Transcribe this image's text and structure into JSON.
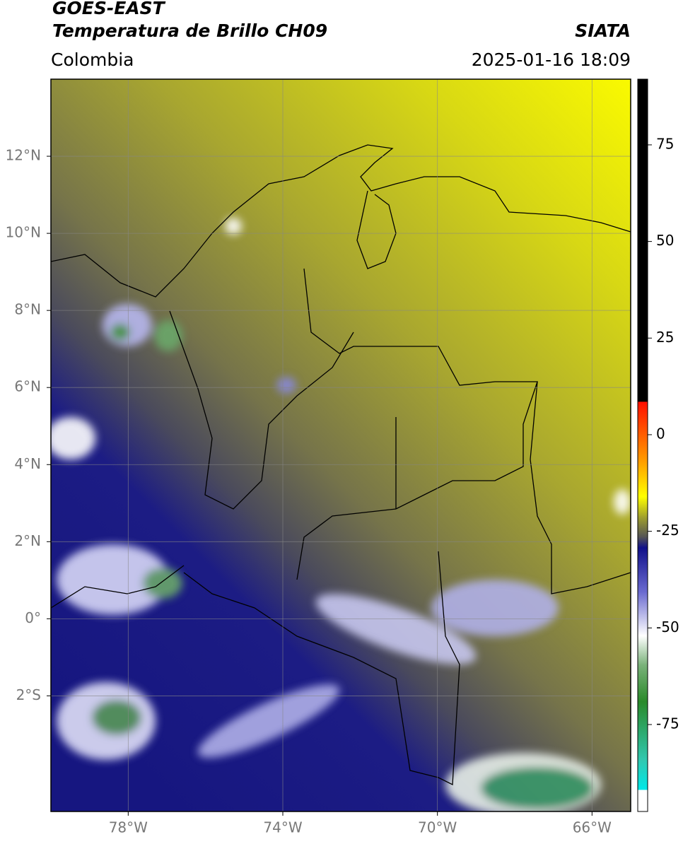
{
  "header": {
    "title_line1": "GOES-EAST",
    "title_line2": "Temperatura de Brillo CH09",
    "source": "SIATA",
    "region": "Colombia",
    "datetime": "2025-01-16 18:09"
  },
  "map": {
    "xlim": [
      -80,
      -65
    ],
    "ylim": [
      -5,
      14
    ],
    "xticks": [
      {
        "value": -78,
        "label": "78°W"
      },
      {
        "value": -74,
        "label": "74°W"
      },
      {
        "value": -70,
        "label": "70°W"
      },
      {
        "value": -66,
        "label": "66°W"
      }
    ],
    "yticks": [
      {
        "value": 12,
        "label": "12°N"
      },
      {
        "value": 10,
        "label": "10°N"
      },
      {
        "value": 8,
        "label": "8°N"
      },
      {
        "value": 6,
        "label": "6°N"
      },
      {
        "value": 4,
        "label": "4°N"
      },
      {
        "value": 2,
        "label": "2°N"
      },
      {
        "value": 0,
        "label": "0°"
      },
      {
        "value": -2,
        "label": "2°S"
      }
    ],
    "grid": true
  },
  "colorbar": {
    "lim": [
      -97.5,
      92
    ],
    "ticks": [
      75,
      50,
      25,
      0,
      -25,
      -50,
      -75
    ]
  }
}
